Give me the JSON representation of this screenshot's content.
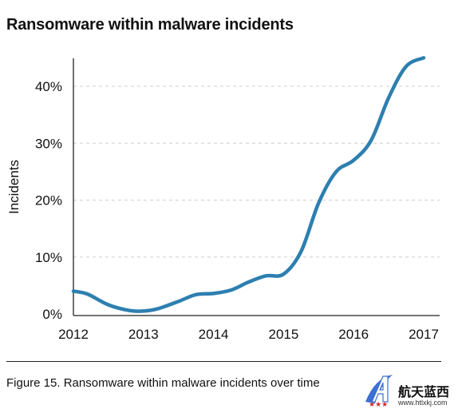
{
  "chart_data": {
    "type": "line",
    "title": "Ransomware within malware incidents",
    "xlabel": "",
    "ylabel": "Incidents",
    "x": [
      2012,
      2013,
      2014,
      2015,
      2016,
      2017
    ],
    "xlim": [
      2012,
      2017
    ],
    "ylim": [
      0,
      45
    ],
    "y_ticks": [
      0,
      10,
      20,
      30,
      40
    ],
    "y_tick_labels": [
      "0%",
      "10%",
      "20%",
      "30%",
      "40%"
    ],
    "x_tick_labels": [
      "2012",
      "2013",
      "2014",
      "2015",
      "2016",
      "2017"
    ],
    "grid": "horizontal dashed",
    "legend": "none",
    "line_color": "#2d7fb0",
    "series": [
      {
        "values": [
          [
            2012.0,
            4.0
          ],
          [
            2012.2,
            3.5
          ],
          [
            2012.5,
            1.6
          ],
          [
            2012.8,
            0.6
          ],
          [
            2013.0,
            0.5
          ],
          [
            2013.2,
            0.9
          ],
          [
            2013.5,
            2.2
          ],
          [
            2013.75,
            3.4
          ],
          [
            2014.0,
            3.6
          ],
          [
            2014.25,
            4.2
          ],
          [
            2014.5,
            5.6
          ],
          [
            2014.75,
            6.7
          ],
          [
            2015.0,
            7.0
          ],
          [
            2015.25,
            11.0
          ],
          [
            2015.5,
            19.5
          ],
          [
            2015.75,
            25.0
          ],
          [
            2016.0,
            27.0
          ],
          [
            2016.25,
            30.5
          ],
          [
            2016.5,
            38.0
          ],
          [
            2016.75,
            43.5
          ],
          [
            2017.0,
            45.0
          ]
        ]
      }
    ]
  },
  "caption": "Figure 15.  Ransomware within malware incidents over time",
  "watermark": {
    "brand_cn": "航天蓝西",
    "url": "www.htlxkj.com",
    "accent_color": "#3b6fd1",
    "star_color": "#d6262b"
  }
}
